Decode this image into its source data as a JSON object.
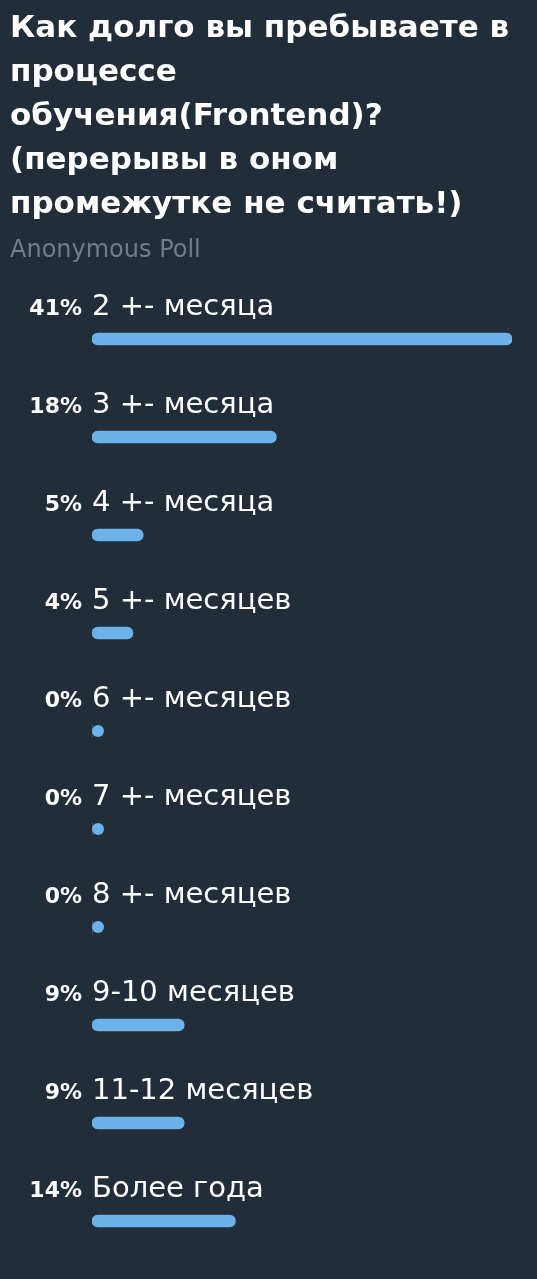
{
  "chart_data": {
    "type": "bar",
    "title": "Как долго вы пребываете в процессе обучения(Frontend)? (перерывы в оном промежутке не считать!)",
    "subtitle": "Anonymous Poll",
    "categories": [
      "2 +- месяца",
      "3 +- месяца",
      "4 +- месяца",
      "5 +- месяцев",
      "6 +- месяцев",
      "7 +- месяцев",
      "8 +- месяцев",
      "9-10 месяцев",
      "11-12 месяцев",
      "Более года"
    ],
    "values": [
      41,
      18,
      5,
      4,
      0,
      0,
      0,
      9,
      9,
      14
    ],
    "value_labels": [
      "41%",
      "18%",
      "5%",
      "4%",
      "0%",
      "0%",
      "0%",
      "9%",
      "9%",
      "14%"
    ],
    "color": "#6cb2e8",
    "orientation": "horizontal",
    "xlim": [
      0,
      41
    ],
    "tick_labels": "y"
  }
}
